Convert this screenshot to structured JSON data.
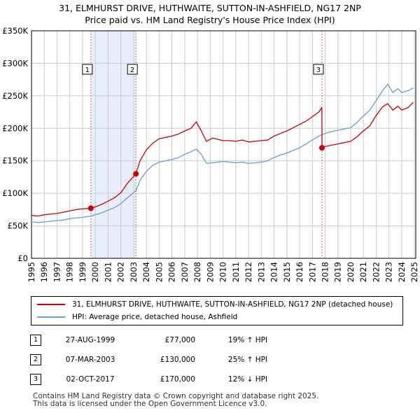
{
  "header": {
    "title_line1": "31, ELMHURST DRIVE, HUTHWAITE, SUTTON-IN-ASHFIELD, NG17 2NP",
    "title_line2": "Price paid vs. HM Land Registry's House Price Index (HPI)"
  },
  "colors": {
    "property": "#cc0000",
    "hpi": "#6a9bd1",
    "band": "#e8eefb",
    "grid": "#cccccc",
    "marker_line": "#cc6666"
  },
  "chart_data": {
    "type": "line",
    "title": "Price paid vs. HM Land Registry's House Price Index (HPI)",
    "xlabel": "",
    "ylabel": "",
    "xlim": [
      1995,
      2025.1
    ],
    "ylim": [
      0,
      350000
    ],
    "y_ticks": [
      0,
      50000,
      100000,
      150000,
      200000,
      250000,
      300000,
      350000
    ],
    "y_tick_labels": [
      "£0",
      "£50K",
      "£100K",
      "£150K",
      "£200K",
      "£250K",
      "£300K",
      "£350K"
    ],
    "x_ticks": [
      1995,
      1996,
      1997,
      1998,
      1999,
      2000,
      2001,
      2002,
      2003,
      2004,
      2005,
      2006,
      2007,
      2008,
      2009,
      2010,
      2011,
      2012,
      2013,
      2014,
      2015,
      2016,
      2017,
      2018,
      2019,
      2020,
      2021,
      2022,
      2023,
      2024,
      2025
    ],
    "x_tick_labels": [
      "1995",
      "1996",
      "1997",
      "1998",
      "1999",
      "2000",
      "2001",
      "2002",
      "2003",
      "2004",
      "2005",
      "2006",
      "2007",
      "2008",
      "2009",
      "2010",
      "2011",
      "2012",
      "2013",
      "2014",
      "2015",
      "2016",
      "2017",
      "2018",
      "2019",
      "2020",
      "2021",
      "2022",
      "2023",
      "2024",
      "2025"
    ],
    "grid": true,
    "shaded_bands": [
      [
        1999.65,
        2003.18
      ]
    ],
    "series": [
      {
        "name": "31, ELMHURST DRIVE, HUTHWAITE, SUTTON-IN-ASHFIELD, NG17 2NP (detached house)",
        "x": [
          1995.0,
          1995.5,
          1996.0,
          1996.5,
          1997.0,
          1997.5,
          1998.0,
          1998.5,
          1999.0,
          1999.65,
          2000.0,
          2000.5,
          2001.0,
          2001.5,
          2002.0,
          2002.5,
          2003.18,
          2003.5,
          2004.0,
          2004.5,
          2005.0,
          2005.5,
          2006.0,
          2006.5,
          2007.0,
          2007.5,
          2007.9,
          2008.3,
          2008.7,
          2009.2,
          2009.6,
          2010.0,
          2010.5,
          2011.0,
          2011.5,
          2012.0,
          2012.5,
          2013.0,
          2013.5,
          2014.0,
          2014.5,
          2015.0,
          2015.5,
          2016.0,
          2016.5,
          2017.0,
          2017.5,
          2017.74,
          2017.76,
          2018.0,
          2018.5,
          2019.0,
          2019.5,
          2020.0,
          2020.5,
          2021.0,
          2021.5,
          2022.0,
          2022.5,
          2022.9,
          2023.3,
          2023.7,
          2024.0,
          2024.5,
          2024.9
        ],
        "values": [
          66000,
          65000,
          67000,
          68000,
          69000,
          71000,
          73000,
          75000,
          76000,
          77000,
          79000,
          83000,
          88000,
          93000,
          101000,
          115000,
          130000,
          150000,
          167000,
          177000,
          184000,
          186000,
          188000,
          191000,
          196000,
          200000,
          210000,
          196000,
          180000,
          185000,
          183000,
          181000,
          181000,
          180000,
          182000,
          179000,
          180000,
          181000,
          182000,
          188000,
          192000,
          196000,
          201000,
          206000,
          211000,
          218000,
          225000,
          232000,
          170000,
          172000,
          174000,
          176000,
          178000,
          180000,
          187000,
          196000,
          204000,
          220000,
          233000,
          238000,
          228000,
          234000,
          228000,
          232000,
          240000
        ]
      },
      {
        "name": "HPI: Average price, detached house, Ashfield",
        "x": [
          1995.0,
          1995.5,
          1996.0,
          1996.5,
          1997.0,
          1997.5,
          1998.0,
          1998.5,
          1999.0,
          1999.65,
          2000.0,
          2000.5,
          2001.0,
          2001.5,
          2002.0,
          2002.5,
          2003.18,
          2003.5,
          2004.0,
          2004.5,
          2005.0,
          2005.5,
          2006.0,
          2006.5,
          2007.0,
          2007.5,
          2007.9,
          2008.3,
          2008.7,
          2009.2,
          2009.6,
          2010.0,
          2010.5,
          2011.0,
          2011.5,
          2012.0,
          2012.5,
          2013.0,
          2013.5,
          2014.0,
          2014.5,
          2015.0,
          2015.5,
          2016.0,
          2016.5,
          2017.0,
          2017.5,
          2018.0,
          2018.5,
          2019.0,
          2019.5,
          2020.0,
          2020.5,
          2021.0,
          2021.5,
          2022.0,
          2022.5,
          2022.9,
          2023.3,
          2023.7,
          2024.0,
          2024.5,
          2024.9
        ],
        "values": [
          56000,
          55000,
          56000,
          57000,
          58000,
          59000,
          61000,
          62000,
          63000,
          65000,
          67000,
          70000,
          74000,
          78000,
          84000,
          93000,
          104000,
          120000,
          134000,
          143000,
          148000,
          150000,
          152000,
          155000,
          160000,
          164000,
          168000,
          160000,
          146000,
          147000,
          148000,
          149000,
          148000,
          147000,
          148000,
          146000,
          147000,
          148000,
          150000,
          155000,
          159000,
          162000,
          166000,
          170000,
          176000,
          182000,
          188000,
          192000,
          195000,
          197000,
          199000,
          201000,
          209000,
          219000,
          228000,
          243000,
          258000,
          268000,
          255000,
          261000,
          255000,
          258000,
          262000
        ]
      }
    ],
    "annotations": [
      {
        "label": "1",
        "x": 1999.65
      },
      {
        "label": "2",
        "x": 2003.18
      },
      {
        "label": "3",
        "x": 2017.75
      }
    ],
    "sale_points": [
      {
        "x": 1999.65,
        "value": 77000
      },
      {
        "x": 2003.18,
        "value": 130000
      },
      {
        "x": 2017.75,
        "value": 170000
      }
    ]
  },
  "legend": {
    "property_label": "31, ELMHURST DRIVE, HUTHWAITE, SUTTON-IN-ASHFIELD, NG17 2NP (detached house)",
    "hpi_label": "HPI: Average price, detached house, Ashfield"
  },
  "sales": [
    {
      "num": "1",
      "date": "27-AUG-1999",
      "price": "£77,000",
      "hpi": "19% ↑ HPI"
    },
    {
      "num": "2",
      "date": "07-MAR-2003",
      "price": "£130,000",
      "hpi": "25% ↑ HPI"
    },
    {
      "num": "3",
      "date": "02-OCT-2017",
      "price": "£170,000",
      "hpi": "12% ↓ HPI"
    }
  ],
  "footer": {
    "line1": "Contains HM Land Registry data © Crown copyright and database right 2025.",
    "line2": "This data is licensed under the Open Government Licence v3.0."
  }
}
